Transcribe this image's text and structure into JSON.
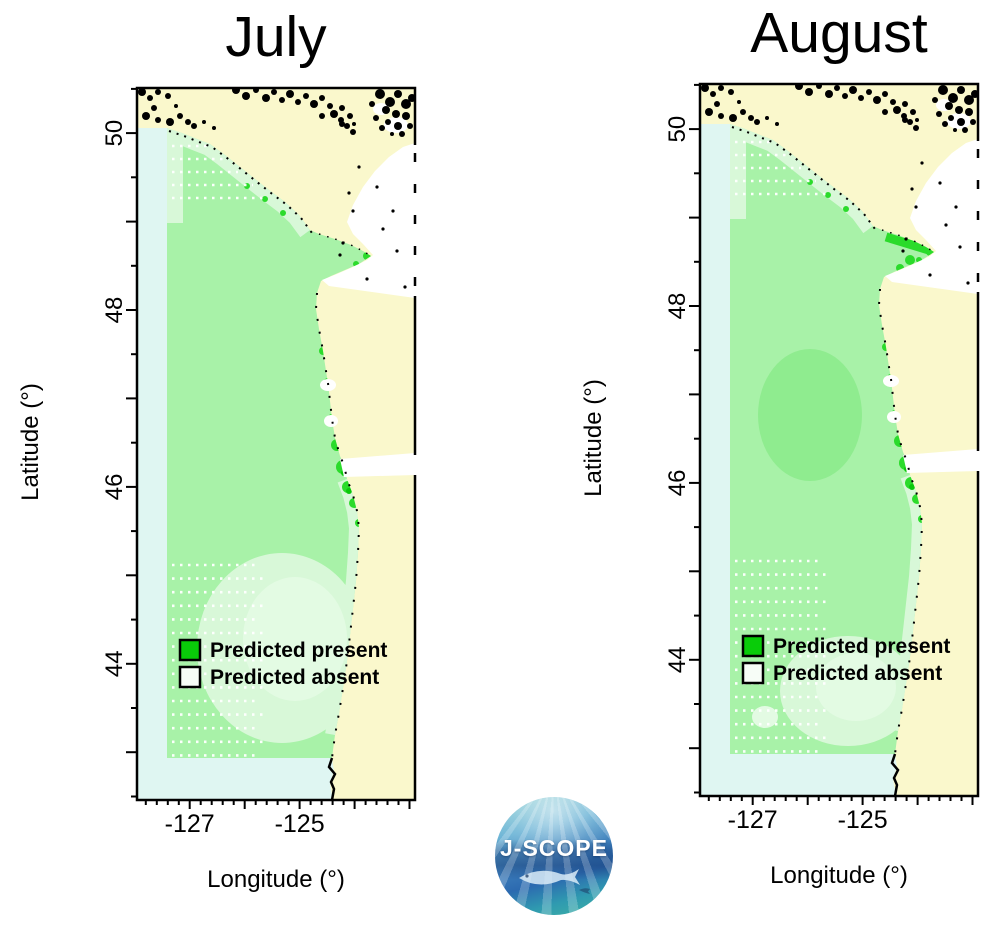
{
  "figure": {
    "panels": [
      {
        "id": "july",
        "title": "July"
      },
      {
        "id": "august",
        "title": "August"
      }
    ],
    "axes": {
      "x_label": "Longitude (°)",
      "y_label": "Latitude (°)",
      "x_ticks": [
        {
          "value": -127,
          "label": "-127"
        },
        {
          "value": -125,
          "label": "-125"
        }
      ],
      "y_ticks": [
        {
          "value": 50,
          "label": "50"
        },
        {
          "value": 48,
          "label": "48"
        },
        {
          "value": 46,
          "label": "46"
        },
        {
          "value": 44,
          "label": "44"
        }
      ],
      "x_range": [
        -127.96,
        -122.9
      ],
      "y_range": [
        42.46,
        50.51
      ],
      "x_minor_step": 0.2,
      "y_minor_step": 0.5
    },
    "legend": {
      "items": [
        {
          "label": "Predicted present",
          "color": "#09CC09"
        },
        {
          "label": "Predicted absent",
          "color": "#F7FDF7"
        }
      ]
    },
    "logo": {
      "text": "J-SCOPE"
    },
    "colors": {
      "land": "#FAF8CC",
      "offshore_water": "#DFF6F2",
      "predicted_present": "#A8F2A8",
      "predicted_present_strong": "#2BDB2B",
      "predicted_present_deep": "#0AC80A",
      "predicted_low": "#D8F8D8",
      "predicted_lower": "#E3FBE3",
      "august_core_patch": "#8FEC8F",
      "inland_water": "#FFFFFF",
      "coastline": "#000000"
    }
  }
}
